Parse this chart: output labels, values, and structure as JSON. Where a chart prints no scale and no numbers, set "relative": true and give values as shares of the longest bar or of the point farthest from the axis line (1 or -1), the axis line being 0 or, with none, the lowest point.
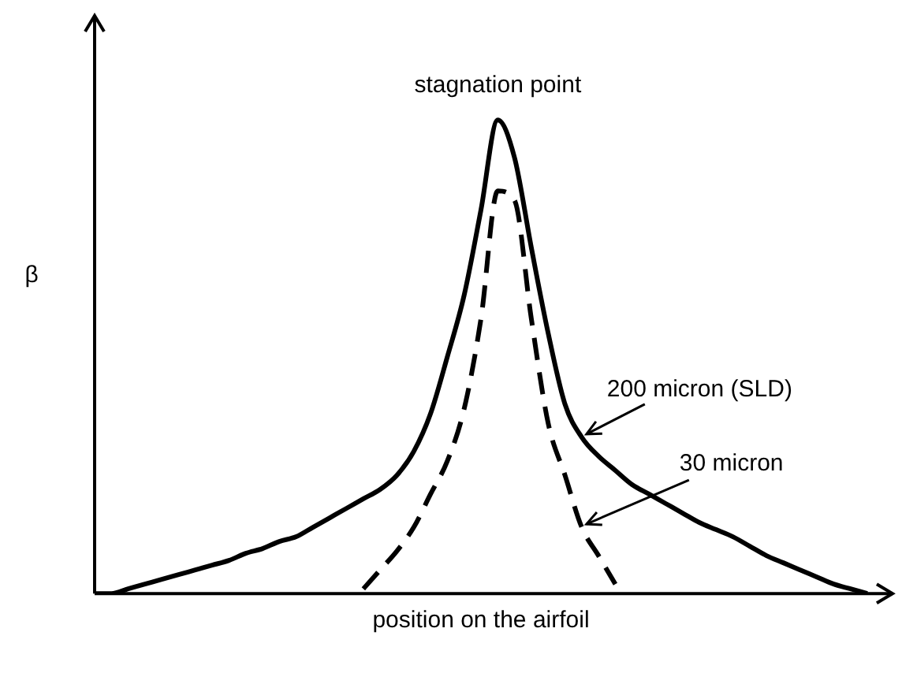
{
  "chart_data": {
    "type": "line",
    "relative": true,
    "xlabel": "position on the airfoil",
    "ylabel": "β",
    "annotations": [
      "stagnation point"
    ],
    "legend": false,
    "grid": false,
    "marker": "none",
    "categories": [
      null,
      null,
      null,
      null,
      null,
      null,
      null,
      null,
      null,
      null,
      null,
      null,
      null,
      null,
      null,
      null,
      null,
      null,
      null,
      null,
      null,
      null,
      null,
      null,
      null,
      null,
      null,
      null,
      null,
      null,
      null,
      null,
      null,
      null,
      null,
      null,
      null,
      null,
      null,
      null,
      null,
      null,
      null,
      null,
      null,
      null,
      null
    ],
    "series": [
      {
        "name": "200 micron (SLD)",
        "color": "#000000",
        "line_style": "solid",
        "values": [
          0,
          0,
          0.01,
          0.02,
          0.03,
          0.04,
          0.05,
          0.06,
          0.07,
          0.085,
          0.095,
          0.11,
          0.12,
          0.14,
          0.16,
          0.18,
          0.2,
          0.22,
          0.25,
          0.3,
          0.38,
          0.5,
          0.63,
          0.81,
          1,
          0.92,
          0.73,
          0.55,
          0.4,
          0.33,
          0.29,
          0.26,
          0.23,
          0.21,
          0.19,
          0.17,
          0.15,
          0.135,
          0.12,
          0.1,
          0.08,
          0.065,
          0.05,
          0.035,
          0.02,
          0.01,
          0
        ]
      },
      {
        "name": "30 micron",
        "color": "#000000",
        "line_style": "dashed",
        "values": [
          null,
          null,
          null,
          null,
          null,
          null,
          null,
          null,
          null,
          null,
          null,
          null,
          null,
          null,
          null,
          null,
          0.01,
          0.05,
          0.09,
          0.14,
          0.21,
          0.28,
          0.39,
          0.58,
          0.85,
          0.83,
          0.58,
          0.36,
          0.25,
          0.14,
          0.08,
          0.02,
          null,
          null,
          null,
          null,
          null,
          null,
          null,
          null,
          null,
          null,
          null,
          null,
          null,
          null,
          null
        ]
      }
    ]
  }
}
